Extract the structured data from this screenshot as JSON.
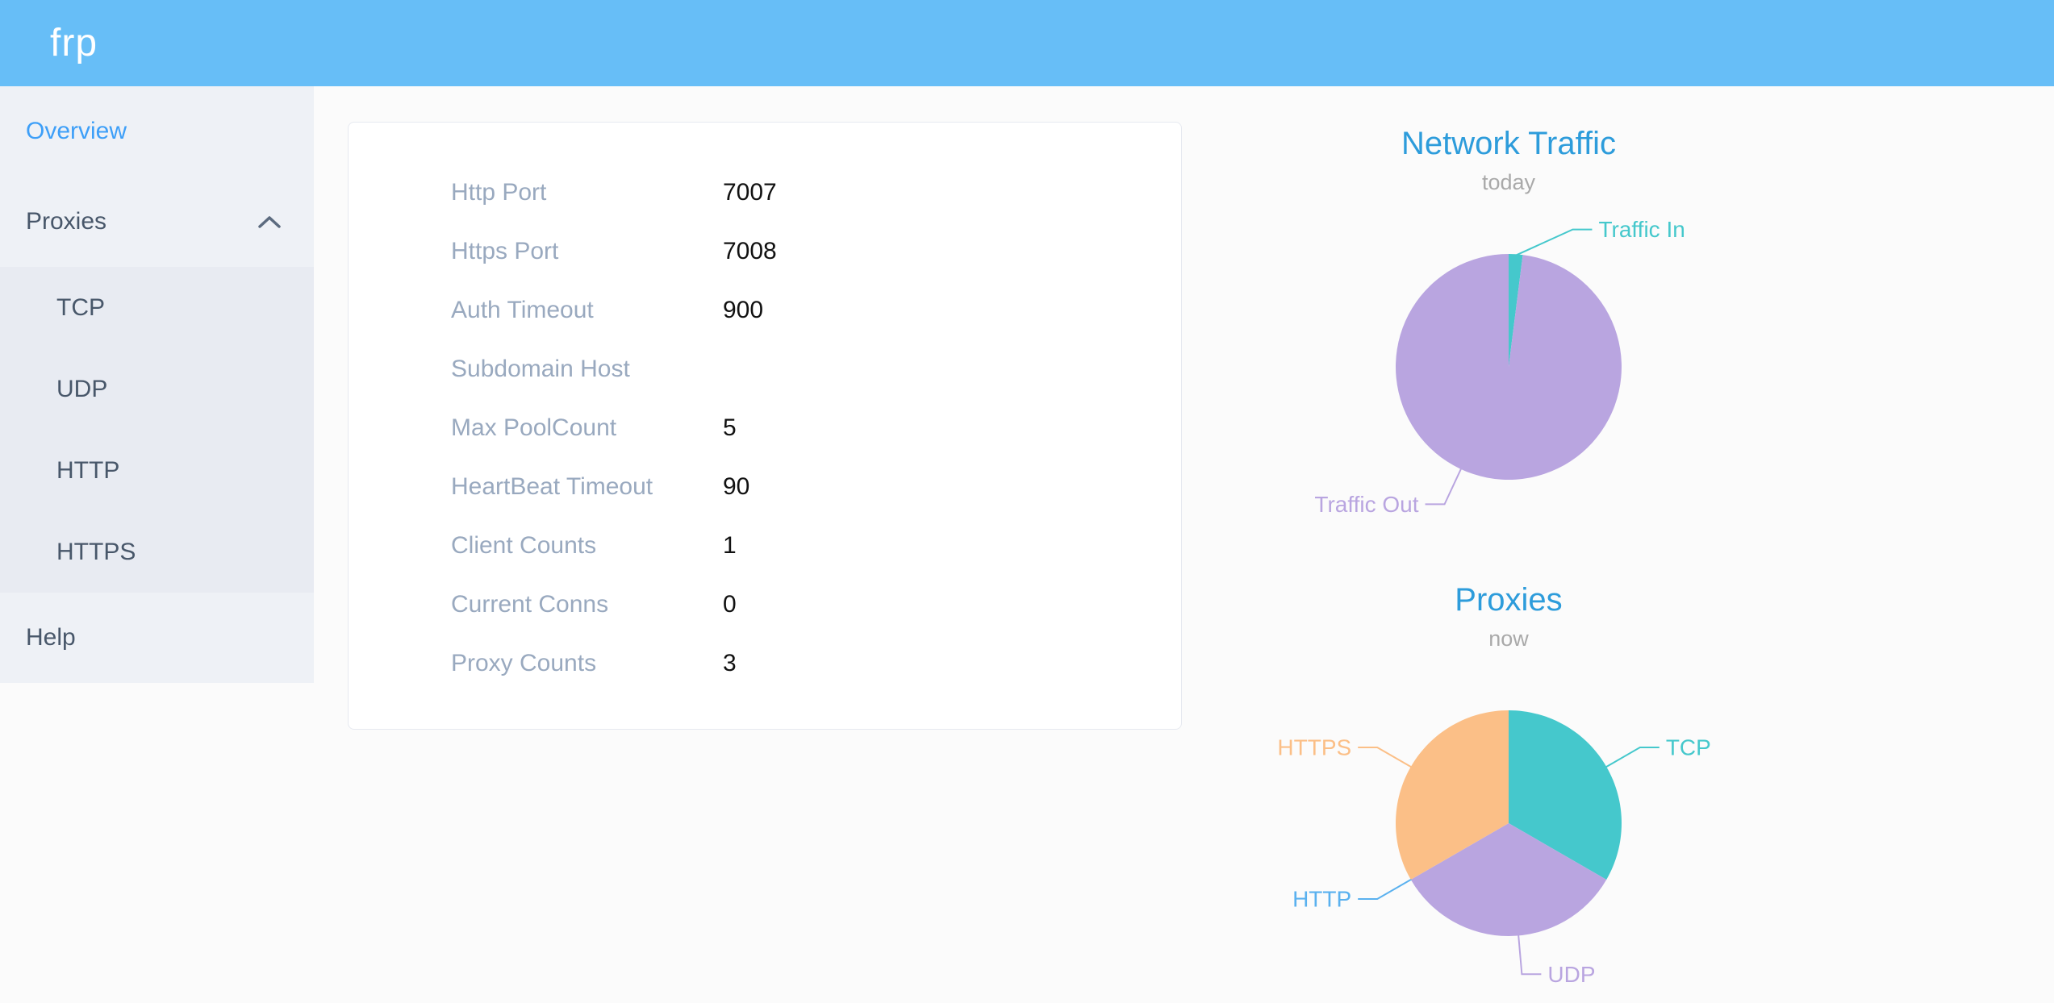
{
  "header": {
    "logo": "frp",
    "background": "#67bef7"
  },
  "sidebar": {
    "active_color": "#3d9ff8",
    "items": [
      {
        "label": "Overview",
        "active": true
      },
      {
        "label": "Proxies",
        "expanded": true,
        "children": [
          {
            "label": "TCP"
          },
          {
            "label": "UDP"
          },
          {
            "label": "HTTP"
          },
          {
            "label": "HTTPS"
          }
        ]
      },
      {
        "label": "Help"
      }
    ]
  },
  "server_info": {
    "rows": [
      {
        "label": "Http Port",
        "value": "7007"
      },
      {
        "label": "Https Port",
        "value": "7008"
      },
      {
        "label": "Auth Timeout",
        "value": "900"
      },
      {
        "label": "Subdomain Host",
        "value": ""
      },
      {
        "label": "Max PoolCount",
        "value": "5"
      },
      {
        "label": "HeartBeat Timeout",
        "value": "90"
      },
      {
        "label": "Client Counts",
        "value": "1"
      },
      {
        "label": "Current Conns",
        "value": "0"
      },
      {
        "label": "Proxy Counts",
        "value": "3"
      }
    ]
  },
  "chart_data": [
    {
      "type": "pie",
      "title": "Network Traffic",
      "subtitle": "today",
      "title_color": "#2d9cdb",
      "subtitle_color": "#a9a9a9",
      "labels": "outside-with-leader-lines",
      "slices": [
        {
          "name": "Traffic In",
          "value": 2,
          "unit": "percent-estimated",
          "color": "#45c8cc",
          "label_angle": 25,
          "leader_from_angle": 4
        },
        {
          "name": "Traffic Out",
          "value": 98,
          "unit": "percent-estimated",
          "color": "#b9a5e0",
          "label_angle": 205
        }
      ]
    },
    {
      "type": "pie",
      "title": "Proxies",
      "subtitle": "now",
      "title_color": "#2d9cdb",
      "subtitle_color": "#a9a9a9",
      "labels": "outside-with-leader-lines",
      "slices": [
        {
          "name": "TCP",
          "value": 1,
          "color": "#45c8cc",
          "label_angle": 60
        },
        {
          "name": "UDP",
          "value": 1,
          "color": "#b9a5e0",
          "label_angle": 175
        },
        {
          "name": "HTTP",
          "value": 0,
          "color": "#5ab1ef",
          "label_angle": 240
        },
        {
          "name": "HTTPS",
          "value": 1,
          "color": "#fbbf87",
          "label_angle": 300
        }
      ]
    }
  ]
}
